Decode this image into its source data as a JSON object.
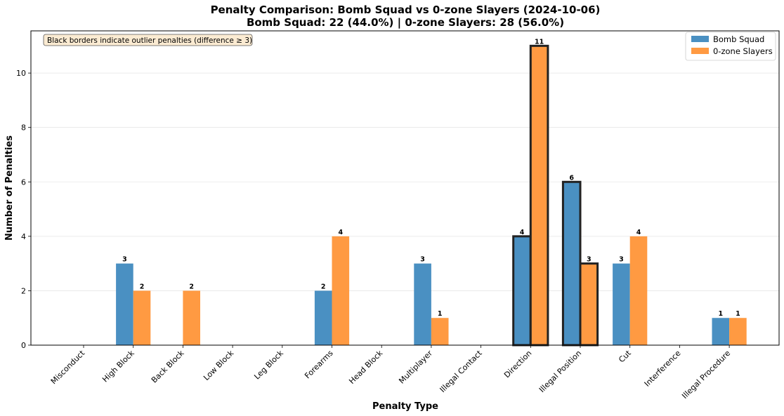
{
  "chart_data": {
    "type": "bar",
    "title": "Penalty Comparison: Bomb Squad vs 0-zone Slayers (2024-10-06)",
    "subtitle": "Bomb Squad: 22 (44.0%) | 0-zone Slayers: 28 (56.0%)",
    "xlabel": "Penalty Type",
    "ylabel": "Number of Penalties",
    "ylim": [
      0,
      11.55
    ],
    "yticks": [
      0,
      2,
      4,
      6,
      8,
      10
    ],
    "grid": "horizontal",
    "legend_position": "top-right",
    "annotation": "Black borders indicate outlier penalties (difference ≥ 3)",
    "categories": [
      "Misconduct",
      "High Block",
      "Back Block",
      "Low Block",
      "Leg Block",
      "Forearms",
      "Head Block",
      "Multiplayer",
      "Illegal Contact",
      "Direction",
      "Illegal Position",
      "Cut",
      "Interference",
      "Illegal Procedure"
    ],
    "series": [
      {
        "name": "Bomb Squad",
        "color": "#4a90c2",
        "values": [
          0,
          3,
          0,
          0,
          0,
          2,
          0,
          3,
          0,
          4,
          6,
          3,
          0,
          1
        ]
      },
      {
        "name": "0-zone Slayers",
        "color": "#ff9a42",
        "values": [
          0,
          2,
          2,
          0,
          0,
          4,
          0,
          1,
          0,
          11,
          3,
          4,
          0,
          1
        ]
      }
    ],
    "outliers": [
      "Direction",
      "Illegal Position"
    ]
  }
}
